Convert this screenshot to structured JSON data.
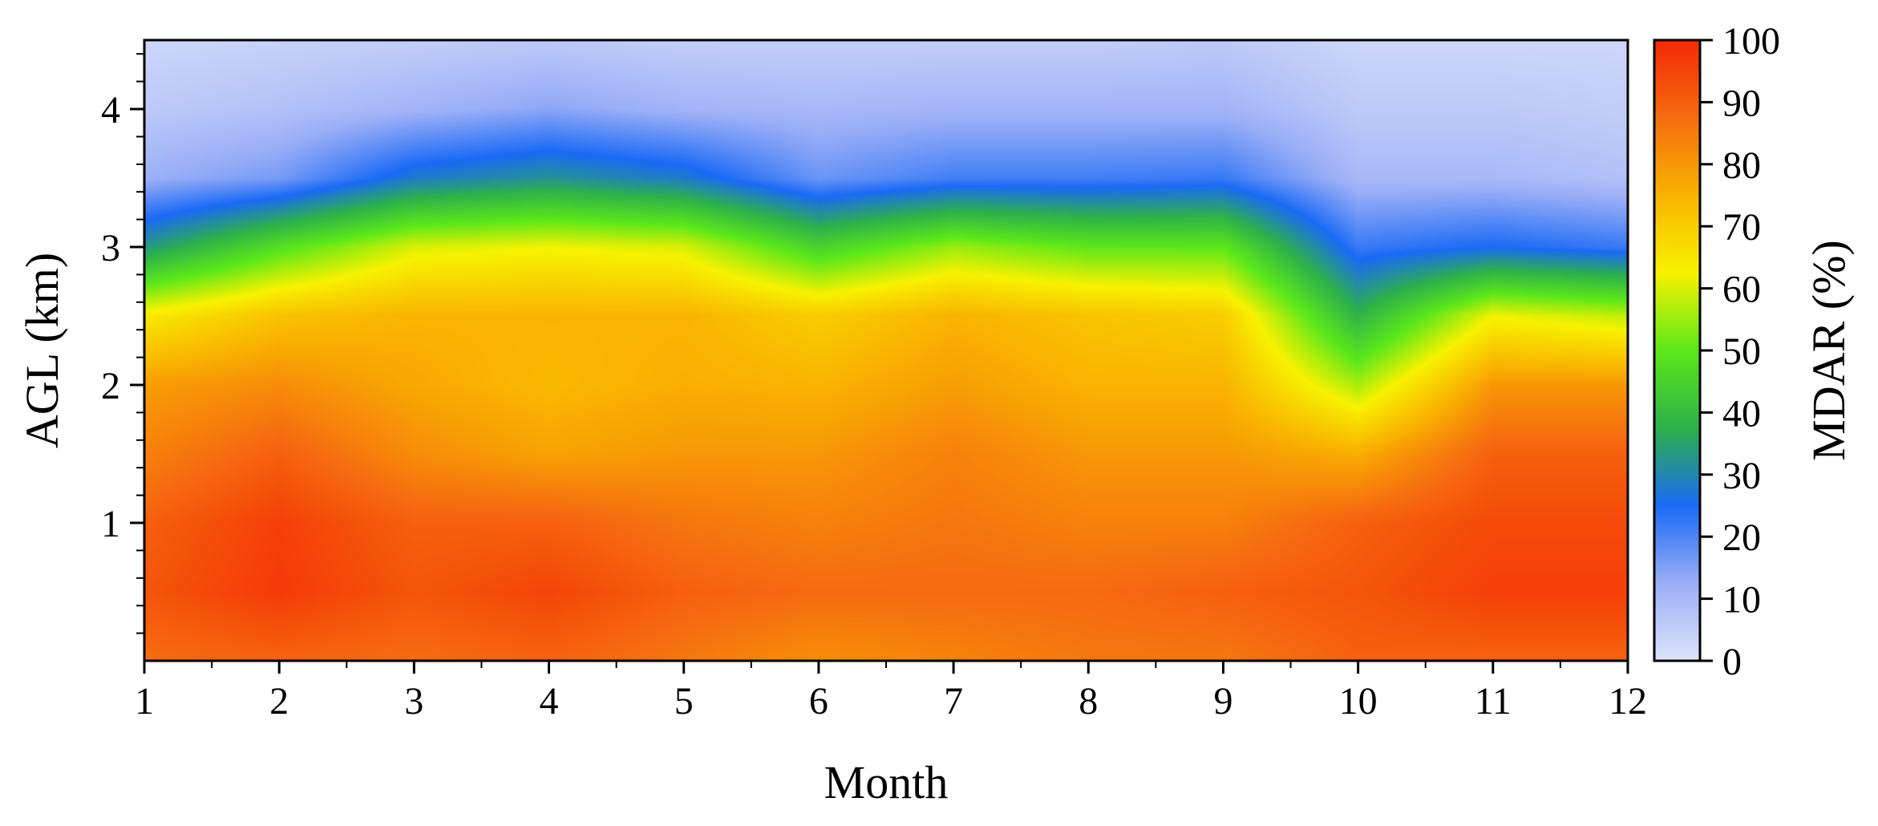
{
  "chart_data": {
    "type": "heatmap",
    "xlabel": "Month",
    "ylabel": "AGL (km)",
    "colorbar_label": "MDAR (%)",
    "x_ticks": [
      "1",
      "2",
      "3",
      "4",
      "5",
      "6",
      "7",
      "8",
      "9",
      "10",
      "11",
      "12"
    ],
    "y_ticks": [
      "1",
      "2",
      "3",
      "4"
    ],
    "colorbar_ticks": [
      "0",
      "10",
      "20",
      "30",
      "40",
      "50",
      "60",
      "70",
      "80",
      "90",
      "100"
    ],
    "xlim": [
      1,
      12
    ],
    "ylim": [
      0,
      4.5
    ],
    "zlim": [
      0,
      100
    ],
    "colormap": [
      "#dde4fa",
      "#9aaef7",
      "#1a6af5",
      "#2db24a",
      "#5ce81a",
      "#f8f200",
      "#f9b400",
      "#f66d10",
      "#f42a05"
    ],
    "x": [
      1,
      2,
      3,
      4,
      5,
      6,
      7,
      8,
      9,
      10,
      11,
      12
    ],
    "y": [
      0.05,
      0.5,
      1.0,
      1.5,
      2.0,
      2.5,
      3.0,
      3.5,
      4.0,
      4.5
    ],
    "z": [
      [
        88,
        90,
        88,
        90,
        86,
        82,
        84,
        86,
        86,
        90,
        90,
        90
      ],
      [
        92,
        97,
        92,
        95,
        90,
        88,
        88,
        88,
        90,
        92,
        96,
        96
      ],
      [
        90,
        96,
        90,
        90,
        86,
        84,
        86,
        84,
        84,
        90,
        94,
        94
      ],
      [
        84,
        90,
        82,
        78,
        80,
        80,
        84,
        80,
        80,
        76,
        90,
        90
      ],
      [
        79,
        82,
        77,
        74,
        76,
        75,
        79,
        75,
        75,
        56,
        80,
        80
      ],
      [
        64,
        72,
        75,
        75,
        75,
        70,
        75,
        72,
        70,
        38,
        62,
        58
      ],
      [
        33,
        48,
        60,
        62,
        60,
        45,
        55,
        50,
        50,
        22,
        25,
        22
      ],
      [
        12,
        16,
        28,
        32,
        28,
        17,
        21,
        21,
        22,
        10,
        10,
        8
      ],
      [
        6,
        8,
        11,
        14,
        11,
        10,
        11,
        11,
        11,
        6,
        6,
        5
      ],
      [
        3,
        4,
        5,
        6,
        5,
        5,
        5,
        5,
        6,
        3,
        3,
        3
      ]
    ]
  }
}
